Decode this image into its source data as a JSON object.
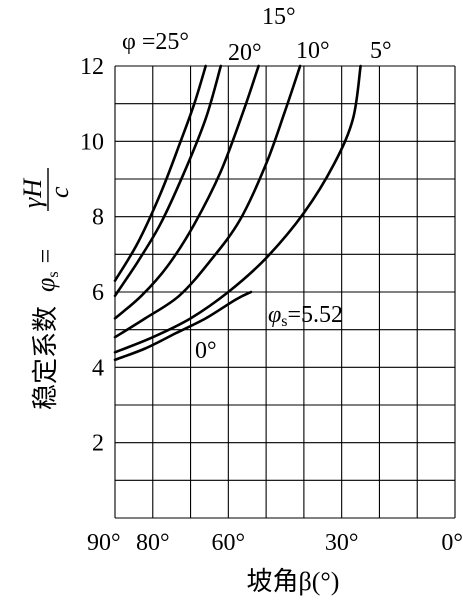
{
  "chart_data": {
    "type": "line",
    "title": "",
    "xlabel": "坡角β(°)",
    "ylabel_main": "稳定系数",
    "ylabel_phi": "φ",
    "ylabel_sub": "s",
    "ylabel_eq": "=",
    "ylabel_num": "γH",
    "ylabel_den": "c",
    "xlim": [
      90,
      0
    ],
    "ylim": [
      0,
      12
    ],
    "grid": true,
    "x_ticks": [
      {
        "value": 90,
        "label": "90°"
      },
      {
        "value": 80,
        "label": "80°"
      },
      {
        "value": 60,
        "label": "60°"
      },
      {
        "value": 30,
        "label": "30°"
      },
      {
        "value": 0,
        "label": "0°"
      }
    ],
    "y_ticks": [
      {
        "value": 2,
        "label": "2"
      },
      {
        "value": 4,
        "label": "4"
      },
      {
        "value": 6,
        "label": "6"
      },
      {
        "value": 8,
        "label": "8"
      },
      {
        "value": 10,
        "label": "10"
      },
      {
        "value": 12,
        "label": "12"
      }
    ],
    "series": [
      {
        "name": "φ =25°",
        "points": [
          [
            90,
            6.3
          ],
          [
            84,
            7.3
          ],
          [
            78,
            8.6
          ],
          [
            73,
            9.9
          ],
          [
            69,
            11.0
          ],
          [
            66,
            12.0
          ]
        ]
      },
      {
        "name": "20°",
        "points": [
          [
            90,
            5.9
          ],
          [
            84,
            6.8
          ],
          [
            78,
            7.8
          ],
          [
            72,
            9.1
          ],
          [
            66,
            10.6
          ],
          [
            62,
            12.0
          ]
        ]
      },
      {
        "name": "15°",
        "points": [
          [
            90,
            5.3
          ],
          [
            83,
            5.9
          ],
          [
            76,
            6.7
          ],
          [
            69,
            7.8
          ],
          [
            62,
            9.2
          ],
          [
            56,
            10.8
          ],
          [
            52,
            12.0
          ]
        ]
      },
      {
        "name": "10°",
        "points": [
          [
            90,
            4.8
          ],
          [
            82,
            5.3
          ],
          [
            73,
            5.9
          ],
          [
            65,
            6.8
          ],
          [
            57,
            7.9
          ],
          [
            50,
            9.4
          ],
          [
            45,
            10.8
          ],
          [
            41,
            12.0
          ]
        ]
      },
      {
        "name": "5°",
        "points": [
          [
            90,
            4.4
          ],
          [
            80,
            4.8
          ],
          [
            70,
            5.3
          ],
          [
            60,
            6.0
          ],
          [
            50,
            6.9
          ],
          [
            40,
            8.1
          ],
          [
            32,
            9.4
          ],
          [
            27,
            10.6
          ],
          [
            25,
            12.0
          ]
        ]
      },
      {
        "name": "0°",
        "points": [
          [
            90,
            4.2
          ],
          [
            82,
            4.5
          ],
          [
            74,
            4.9
          ],
          [
            66,
            5.3
          ],
          [
            58,
            5.8
          ],
          [
            54,
            6.0
          ]
        ]
      }
    ],
    "annotations": {
      "phi_s_label": "φs",
      "phi_s_value": "=5.52"
    }
  }
}
